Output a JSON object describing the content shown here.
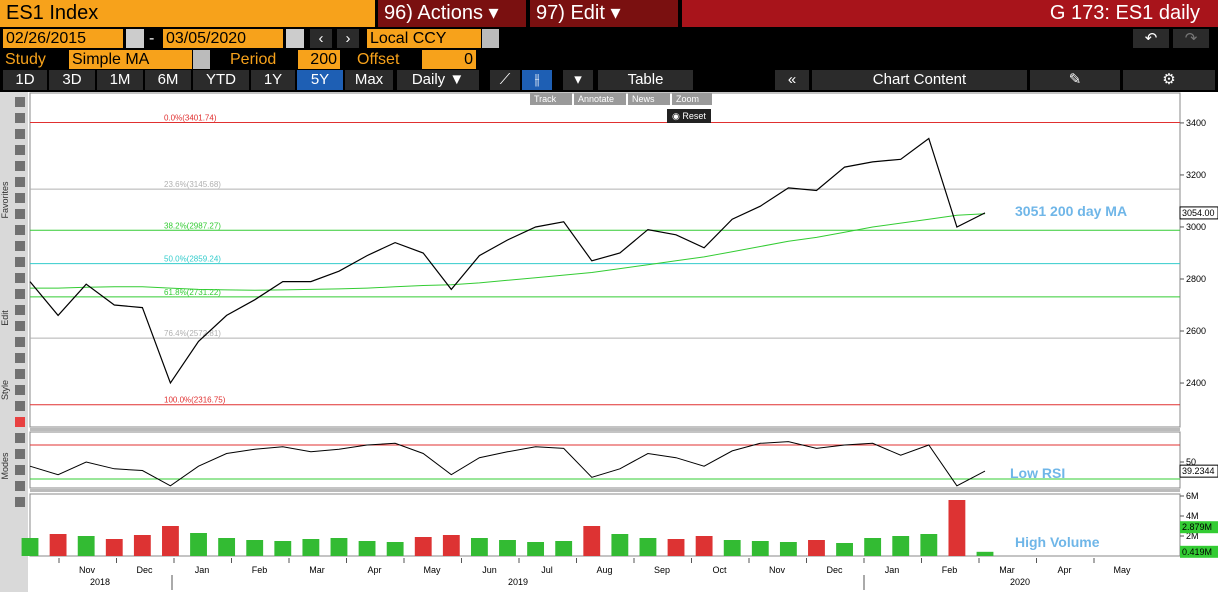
{
  "header": {
    "ticker": "ES1 Index",
    "actions": "96) Actions",
    "edit": "97) Edit",
    "page": "G 173: ES1 daily"
  },
  "range": {
    "start": "02/26/2015",
    "sep": "-",
    "end": "03/05/2020",
    "currency": "Local CCY"
  },
  "study": {
    "label": "Study",
    "name": "Simple MA",
    "period_label": "Period",
    "period": "200",
    "offset_label": "Offset",
    "offset": "0"
  },
  "periods": [
    "1D",
    "3D",
    "1M",
    "6M",
    "YTD",
    "1Y",
    "5Y",
    "Max"
  ],
  "selected_period": "5Y",
  "frequency": "Daily",
  "buttons": {
    "table": "Table",
    "chart_content": "Chart Content"
  },
  "chart_tools": [
    "Track",
    "Annotate",
    "News",
    "Zoom"
  ],
  "reset": "Reset",
  "side_labels": [
    "Favorites",
    "Edit",
    "Style",
    "Modes"
  ],
  "chart_data": {
    "type": "line",
    "months": [
      "Nov",
      "Dec",
      "Jan",
      "Feb",
      "Mar",
      "Apr",
      "May",
      "Jun",
      "Jul",
      "Aug",
      "Sep",
      "Oct",
      "Nov",
      "Dec",
      "Jan",
      "Feb",
      "Mar",
      "Apr",
      "May"
    ],
    "years": [
      "2018",
      "2019",
      "2020"
    ],
    "ylim": [
      2231,
      3515
    ],
    "yticks": [
      2400,
      2600,
      2800,
      3000,
      3200,
      3400
    ],
    "price": {
      "color": "#000000",
      "values": [
        2790,
        2660,
        2780,
        2700,
        2690,
        2400,
        2560,
        2660,
        2720,
        2790,
        2790,
        2830,
        2890,
        2940,
        2900,
        2760,
        2890,
        2950,
        3000,
        3020,
        2870,
        2900,
        2990,
        2970,
        2920,
        3030,
        3080,
        3150,
        3140,
        3230,
        3250,
        3260,
        3340,
        3000,
        3054
      ]
    },
    "last_price": {
      "value": 3054,
      "label": "3054.00"
    },
    "ma": {
      "color": "#33cc33",
      "values": [
        2765,
        2765,
        2768,
        2770,
        2770,
        2765,
        2760,
        2758,
        2757,
        2758,
        2760,
        2762,
        2765,
        2770,
        2775,
        2778,
        2785,
        2795,
        2805,
        2815,
        2825,
        2840,
        2855,
        2870,
        2885,
        2905,
        2925,
        2945,
        2960,
        2980,
        3000,
        3015,
        3030,
        3045,
        3051
      ]
    },
    "ma_label": "3051 200 day MA",
    "annotation_color": "#6fb6e8",
    "fib": [
      {
        "label": "0.0%(3401.74)",
        "value": 3401.74,
        "color": "#e03030"
      },
      {
        "label": "23.6%(3145.68)",
        "value": 3145.68,
        "color": "#b0b0b0"
      },
      {
        "label": "38.2%(2987.27)",
        "value": 2987.27,
        "color": "#33cc33"
      },
      {
        "label": "50.0%(2859.24)",
        "value": 2859.24,
        "color": "#33cccc"
      },
      {
        "label": "61.8%(2731.22)",
        "value": 2731.22,
        "color": "#33cc33"
      },
      {
        "label": "76.4%(2572.81)",
        "value": 2572.81,
        "color": "#b0b0b0"
      },
      {
        "label": "100.0%(2316.75)",
        "value": 2316.75,
        "color": "#e03030"
      }
    ],
    "rsi": {
      "color": "#000000",
      "values": [
        45,
        35,
        50,
        42,
        40,
        22,
        45,
        60,
        65,
        68,
        62,
        65,
        70,
        72,
        60,
        35,
        55,
        62,
        68,
        66,
        32,
        42,
        60,
        55,
        45,
        63,
        72,
        74,
        66,
        70,
        72,
        58,
        70,
        22,
        39.2344
      ],
      "ylim": [
        19.4,
        85.3
      ],
      "yticks": [
        50
      ],
      "levels": [
        {
          "value": 70,
          "color": "#e03030"
        },
        {
          "value": 30,
          "color": "#33cc33"
        }
      ],
      "last": {
        "value": 39.2344,
        "label": "39.2344"
      },
      "label": "Low RSI"
    },
    "volume": {
      "up_color": "#33bb33",
      "down_color": "#dd3333",
      "values": [
        1.8,
        2.2,
        2.0,
        1.7,
        2.1,
        3.0,
        2.3,
        1.8,
        1.6,
        1.5,
        1.7,
        1.8,
        1.5,
        1.4,
        1.9,
        2.1,
        1.8,
        1.6,
        1.4,
        1.5,
        3.0,
        2.2,
        1.8,
        1.7,
        2.0,
        1.6,
        1.5,
        1.4,
        1.6,
        1.3,
        1.8,
        2.0,
        2.2,
        5.6,
        0.419
      ],
      "ylim": [
        0,
        6.2
      ],
      "yticks": [
        {
          "value": 2,
          "label": "2M"
        },
        {
          "value": 4,
          "label": "4M"
        },
        {
          "value": 6,
          "label": "6M"
        }
      ],
      "tags": [
        {
          "value": 2.879,
          "label": "2.879M",
          "color": "#33cc33"
        },
        {
          "value": 0.419,
          "label": "0.419M",
          "color": "#33cc33"
        }
      ],
      "label": "High Volume"
    }
  }
}
